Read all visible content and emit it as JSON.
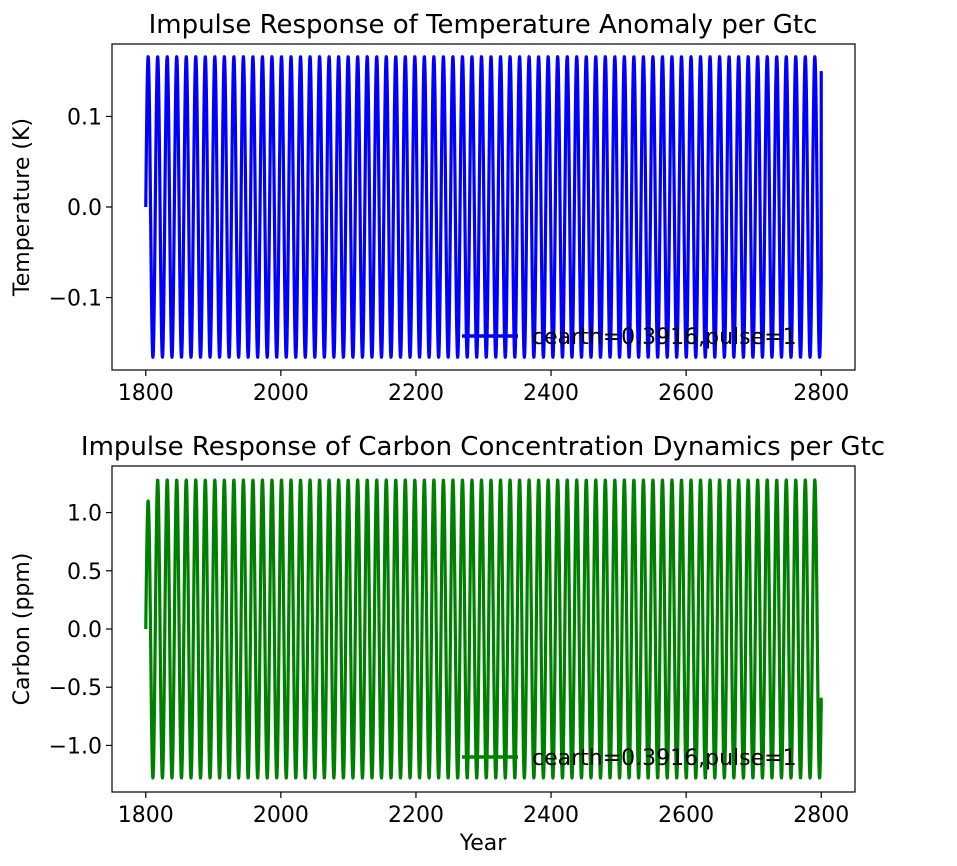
{
  "chart_data": [
    {
      "type": "line",
      "title": "Impulse Response of Temperature Anomaly per Gtc",
      "xlabel": "",
      "ylabel": "Temperature (K)",
      "xlim": [
        1750,
        2850
      ],
      "ylim": [
        -0.18,
        0.18
      ],
      "xticks": [
        1800,
        2000,
        2200,
        2400,
        2600,
        2800
      ],
      "xtick_labels": [
        "1800",
        "2000",
        "2200",
        "2400",
        "2600",
        "2800"
      ],
      "yticks": [
        -0.1,
        0.0,
        0.1
      ],
      "ytick_labels": [
        "−0.1",
        "0.0",
        "0.1"
      ],
      "grid": false,
      "legend_position": "lower-right",
      "series": [
        {
          "name": "cearth=0.3916,pulse=1",
          "color": "#0000ff",
          "x_start": 1800,
          "x_end": 2800,
          "amplitude": 0.166,
          "period_years": 14.1,
          "phase": "sine",
          "last_value": 0.15
        }
      ]
    },
    {
      "type": "line",
      "title": "Impulse Response of Carbon Concentration Dynamics per Gtc",
      "xlabel": "Year",
      "ylabel": "Carbon (ppm)",
      "xlim": [
        1750,
        2850
      ],
      "ylim": [
        -1.4,
        1.4
      ],
      "xticks": [
        1800,
        2000,
        2200,
        2400,
        2600,
        2800
      ],
      "xtick_labels": [
        "1800",
        "2000",
        "2200",
        "2400",
        "2600",
        "2800"
      ],
      "yticks": [
        -1.0,
        -0.5,
        0.0,
        0.5,
        1.0
      ],
      "ytick_labels": [
        "−1.0",
        "−0.5",
        "0.0",
        "0.5",
        "1.0"
      ],
      "grid": false,
      "legend_position": "lower-right",
      "series": [
        {
          "name": "cearth=0.3916,pulse=1",
          "color": "#008000",
          "x_start": 1800,
          "x_end": 2800,
          "amplitude": 1.28,
          "period_years": 14.1,
          "phase": "sine",
          "first_peak": 1.1,
          "last_value": -0.7
        }
      ]
    }
  ]
}
